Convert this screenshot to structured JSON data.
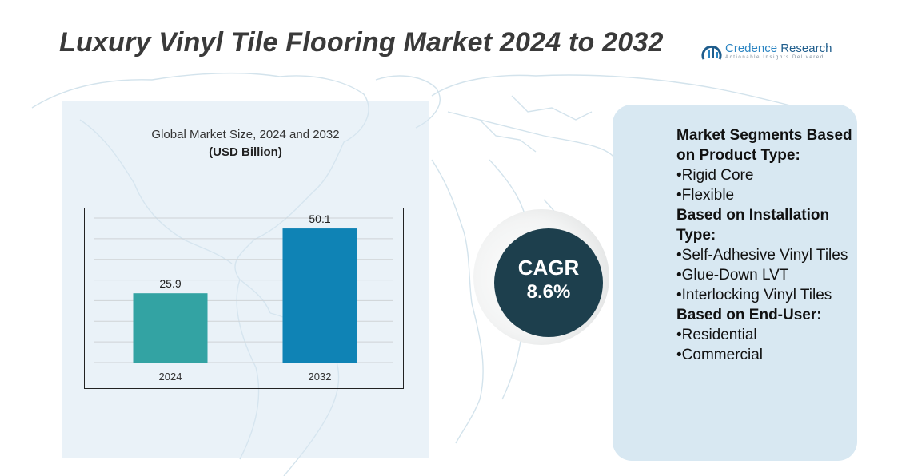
{
  "title": "Luxury Vinyl Tile Flooring Market 2024 to 2032",
  "logo": {
    "name_part1": "Credence",
    "name_part2": " Research",
    "tagline": "Actionable Insights Delivered"
  },
  "colors": {
    "bar_2024": "#33a3a3",
    "bar_2032": "#0f83b5",
    "cagr_bg": "#1d3f4d",
    "panel_bg": "#d8e8f2",
    "title": "#3a3a3a"
  },
  "chart_data": {
    "type": "bar",
    "title": "Global Market Size, 2024 and 2032",
    "subtitle": "(USD Billion)",
    "categories": [
      "2024",
      "2032"
    ],
    "values": [
      25.9,
      50.1
    ],
    "data_labels": [
      "25.9",
      "50.1"
    ],
    "ylim": [
      0,
      54
    ],
    "grid": true,
    "xlabel": "",
    "ylabel": ""
  },
  "cagr": {
    "label": "CAGR",
    "value": "8.6%"
  },
  "segments": [
    {
      "heading": "Market Segments Based on Product Type:",
      "items": [
        "•Rigid Core",
        "•Flexible"
      ]
    },
    {
      "heading": "Based on Installation Type:",
      "items": [
        "•Self-Adhesive Vinyl Tiles",
        "•Glue-Down LVT",
        "•Interlocking Vinyl Tiles"
      ]
    },
    {
      "heading": "Based on End-User:",
      "items": [
        "•Residential",
        "•Commercial"
      ]
    }
  ]
}
